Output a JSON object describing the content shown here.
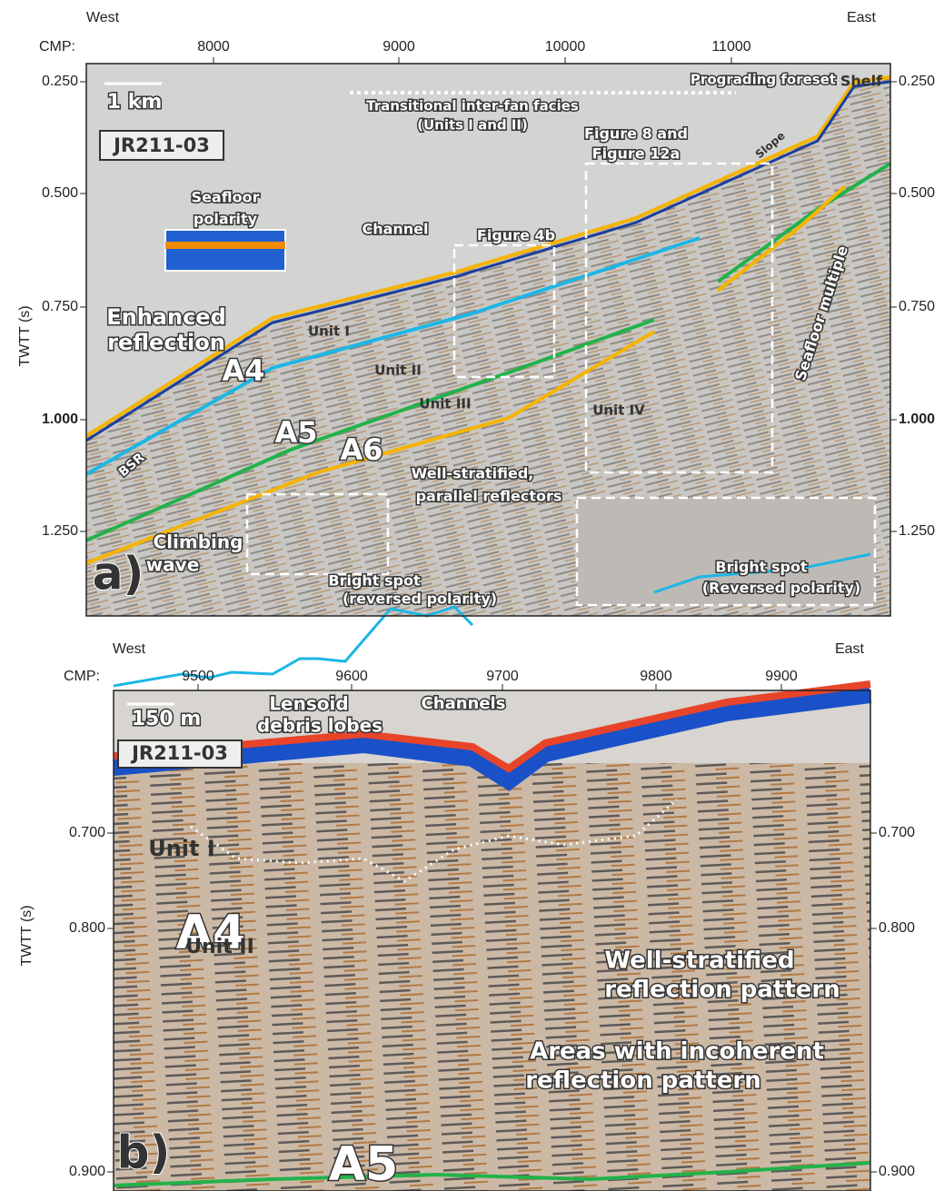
{
  "panels": [
    {
      "label": "a)",
      "west": "West",
      "east": "East",
      "cmp_label": "CMP:",
      "x_ticks": [
        "8000",
        "9000",
        "10000",
        "11000"
      ],
      "y_label": "TWTT (s)",
      "y_ticks": [
        "0.250",
        "0.500",
        "0.750",
        "1.000",
        "1.250"
      ],
      "scale_bar": "1 km",
      "line_id": "JR211-03",
      "annotations": [
        "Transitional inter-fan facies",
        "(Units I and II)",
        "Prograding foreset",
        "Shelf",
        "Slope",
        "Figure 8 and",
        "Figure 12a",
        "Seafloor",
        "polarity",
        "Channel",
        "Figure 4b",
        "Enhanced",
        "reflection",
        "Unit I",
        "Unit II",
        "Unit III",
        "Unit IV",
        "A4",
        "A5",
        "A6",
        "BSR",
        "Seafloor multiple",
        "Well-stratified,",
        "parallel reflectors",
        "Climbing",
        "wave",
        "Bright spot",
        "(reversed polarity)",
        "Bright spot",
        "(Reversed polarity)"
      ]
    },
    {
      "label": "b)",
      "west": "West",
      "east": "East",
      "cmp_label": "CMP:",
      "x_ticks": [
        "9500",
        "9600",
        "9700",
        "9800",
        "9900"
      ],
      "y_label": "TWTT (s)",
      "y_ticks": [
        "0.700",
        "0.800",
        "0.900"
      ],
      "scale_bar": "150 m",
      "line_id": "JR211-03",
      "annotations": [
        "Lensoid",
        "debris lobes",
        "Channels",
        "Unit I",
        "A4",
        "Unit II",
        "Well-stratified",
        "reflection pattern",
        "Areas with incoherent",
        "reflection pattern",
        "A5"
      ]
    }
  ]
}
